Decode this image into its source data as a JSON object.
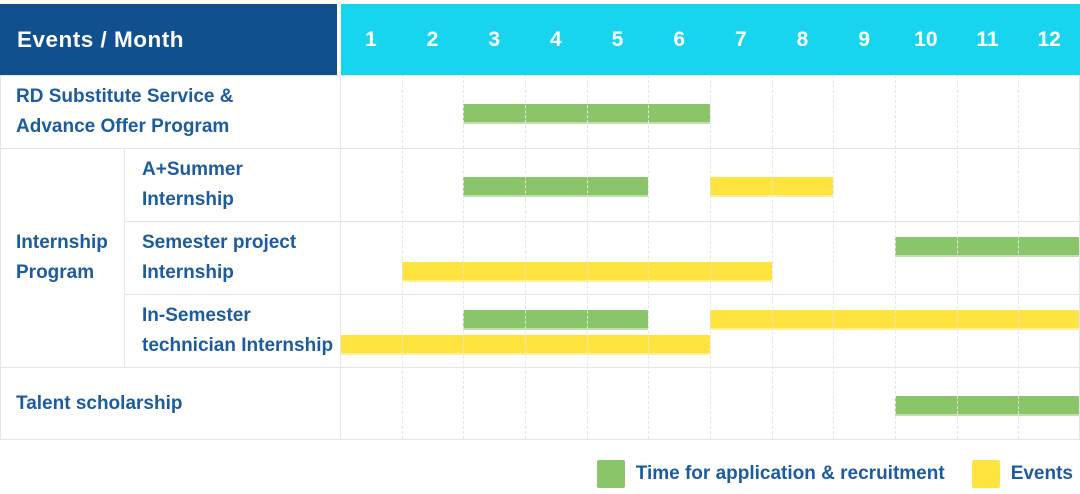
{
  "header": {
    "corner_label": "Events / Month",
    "months": [
      "1",
      "2",
      "3",
      "4",
      "5",
      "6",
      "7",
      "8",
      "9",
      "10",
      "11",
      "12"
    ]
  },
  "colors": {
    "header_bg": "#11508E",
    "months_bg": "#17D5EE",
    "header_text": "#FFFFFF",
    "bar_green": "#8BC56A",
    "bar_yellow": "#FFE33F",
    "text_blue": "#1C5C9E",
    "grid_line": "#E5E5E8"
  },
  "legend": [
    {
      "series": "application",
      "label": "Time for application & recruitment"
    },
    {
      "series": "events",
      "label": "Events"
    }
  ],
  "chart_data": {
    "type": "bar",
    "variant": "gantt",
    "title": "Events / Month",
    "x_axis": {
      "unit": "month",
      "ticks": [
        1,
        2,
        3,
        4,
        5,
        6,
        7,
        8,
        9,
        10,
        11,
        12
      ],
      "range": [
        1,
        12
      ]
    },
    "series_legend": {
      "application": "Time for application & recruitment",
      "events": "Events"
    },
    "rows": [
      {
        "label": "RD Substitute Service &\nAdvance Offer Program",
        "group": null,
        "bars": [
          {
            "series": "application",
            "start_month": 3,
            "end_month": 6,
            "track": 0
          }
        ]
      },
      {
        "label": "A+Summer\nInternship",
        "group": "Internship\nProgram",
        "bars": [
          {
            "series": "application",
            "start_month": 3,
            "end_month": 5,
            "track": 0
          },
          {
            "series": "events",
            "start_month": 7,
            "end_month": 8,
            "track": 0
          }
        ]
      },
      {
        "label": "Semester project\nInternship",
        "group": "Internship\nProgram",
        "bars": [
          {
            "series": "application",
            "start_month": 10,
            "end_month": 12,
            "track": 0
          },
          {
            "series": "events",
            "start_month": 2,
            "end_month": 7,
            "track": 1
          }
        ]
      },
      {
        "label": "In-Semester\ntechnician Internship",
        "group": "Internship\nProgram",
        "bars": [
          {
            "series": "application",
            "start_month": 3,
            "end_month": 5,
            "track": 0
          },
          {
            "series": "events",
            "start_month": 7,
            "end_month": 12,
            "track": 0
          },
          {
            "series": "events",
            "start_month": 1,
            "end_month": 6,
            "track": 1
          }
        ]
      },
      {
        "label": "Talent scholarship",
        "group": null,
        "bars": [
          {
            "series": "application",
            "start_month": 10,
            "end_month": 12,
            "track": 0
          }
        ]
      }
    ]
  }
}
